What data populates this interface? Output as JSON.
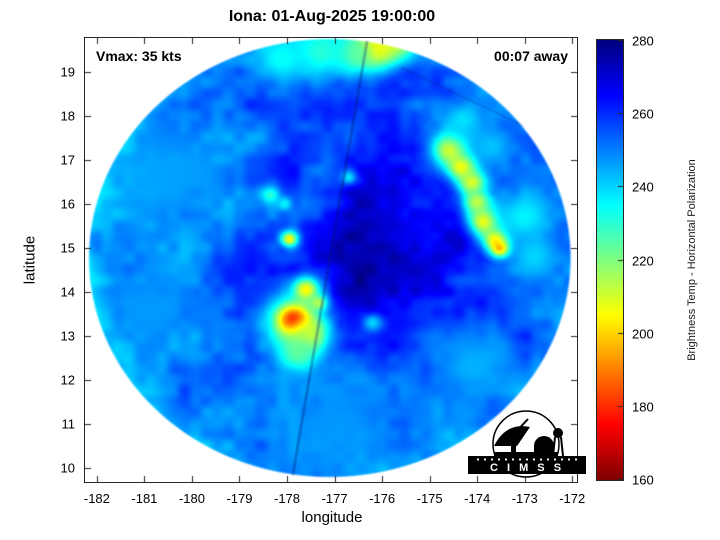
{
  "title": "Iona: 01-Aug-2025 19:00:00",
  "annotations": {
    "vmax": "Vmax: 35 kts",
    "eta": "00:07 away"
  },
  "axes": {
    "xlabel": "longitude",
    "ylabel": "latitude",
    "xlim": [
      -182.25,
      -171.9
    ],
    "ylim": [
      9.68,
      19.77
    ],
    "xticks": [
      -182,
      -181,
      -180,
      -179,
      -178,
      -177,
      -176,
      -175,
      -174,
      -173,
      -172
    ],
    "yticks": [
      10,
      11,
      12,
      13,
      14,
      15,
      16,
      17,
      18,
      19
    ]
  },
  "colorbar": {
    "label": "Brightness Temp - Horizontal Polarization",
    "min": 160,
    "max": 280,
    "ticks": [
      160,
      180,
      200,
      220,
      240,
      260,
      280
    ],
    "colormap": "jet-reversed"
  },
  "logo": {
    "text": "C I M S S"
  },
  "chart_data": {
    "type": "heatmap",
    "description": "Microwave brightness temperature (K) circular satellite swath of Tropical Cyclone Iona; blues ~240-280 K, convective bands in yellow/red ~170-210 K",
    "units": "K",
    "disk": {
      "center_lon": -177.1,
      "center_lat": 14.77,
      "radius_lon": 5.09,
      "radius_lat": 5.0
    },
    "base_temp": 254,
    "broad": [
      {
        "lon": -175.6,
        "lat": 15.3,
        "sx": 1.3,
        "sy": 1.6,
        "dt": 14
      },
      {
        "lon": -176.6,
        "lat": 14.0,
        "sx": 1.1,
        "sy": 1.2,
        "dt": 8
      }
    ],
    "features": [
      {
        "lon": -176.15,
        "lat": 19.55,
        "s": 0.33,
        "t": 196
      },
      {
        "lon": -175.75,
        "lat": 19.75,
        "s": 0.3,
        "t": 208
      },
      {
        "lon": -176.55,
        "lat": 19.4,
        "s": 0.3,
        "t": 222
      },
      {
        "lon": -177.3,
        "lat": 19.45,
        "s": 0.45,
        "t": 230
      },
      {
        "lon": -178.1,
        "lat": 19.3,
        "s": 0.4,
        "t": 234
      },
      {
        "lon": -174.55,
        "lat": 17.25,
        "s": 0.28,
        "t": 204
      },
      {
        "lon": -174.3,
        "lat": 16.85,
        "s": 0.22,
        "t": 198
      },
      {
        "lon": -174.1,
        "lat": 16.5,
        "s": 0.22,
        "t": 206
      },
      {
        "lon": -174.0,
        "lat": 16.05,
        "s": 0.2,
        "t": 212
      },
      {
        "lon": -173.85,
        "lat": 15.6,
        "s": 0.22,
        "t": 202
      },
      {
        "lon": -173.6,
        "lat": 15.2,
        "s": 0.18,
        "t": 196
      },
      {
        "lon": -173.5,
        "lat": 15.0,
        "s": 0.14,
        "t": 178
      },
      {
        "lon": -173.0,
        "lat": 15.7,
        "s": 0.45,
        "t": 236
      },
      {
        "lon": -172.8,
        "lat": 14.8,
        "s": 0.4,
        "t": 240
      },
      {
        "lon": -174.3,
        "lat": 17.9,
        "s": 0.35,
        "t": 238
      },
      {
        "lon": -173.7,
        "lat": 17.3,
        "s": 0.4,
        "t": 242
      },
      {
        "lon": -177.6,
        "lat": 14.05,
        "s": 0.2,
        "t": 204
      },
      {
        "lon": -177.85,
        "lat": 13.35,
        "s": 0.4,
        "t": 204
      },
      {
        "lon": -177.85,
        "lat": 13.35,
        "s": 0.18,
        "t": 172
      },
      {
        "lon": -177.55,
        "lat": 13.0,
        "s": 0.3,
        "t": 208
      },
      {
        "lon": -177.75,
        "lat": 12.6,
        "s": 0.3,
        "t": 222
      },
      {
        "lon": -177.35,
        "lat": 13.75,
        "s": 0.13,
        "t": 214
      },
      {
        "lon": -177.95,
        "lat": 15.2,
        "s": 0.12,
        "t": 204
      },
      {
        "lon": -178.35,
        "lat": 16.2,
        "s": 0.14,
        "t": 230
      },
      {
        "lon": -178.05,
        "lat": 16.0,
        "s": 0.1,
        "t": 236
      },
      {
        "lon": -176.7,
        "lat": 16.6,
        "s": 0.12,
        "t": 238
      },
      {
        "lon": -176.2,
        "lat": 13.3,
        "s": 0.15,
        "t": 240
      },
      {
        "lon": -176.9,
        "lat": 11.0,
        "s": 0.8,
        "t": 247
      },
      {
        "lon": -174.1,
        "lat": 12.3,
        "s": 0.6,
        "t": 244
      },
      {
        "lon": -180.6,
        "lat": 16.6,
        "s": 0.7,
        "t": 246
      },
      {
        "lon": -180.9,
        "lat": 13.6,
        "s": 0.6,
        "t": 247
      }
    ],
    "seams": [
      {
        "lon1": -176.3,
        "lat1": 19.8,
        "lon2": -177.9,
        "lat2": 9.7,
        "width": 3,
        "alpha": 0.3
      },
      {
        "lon1": -175.6,
        "lat1": 19.1,
        "lon2": -171.9,
        "lat2": 17.2,
        "width": 2,
        "alpha": 0.15
      }
    ]
  }
}
